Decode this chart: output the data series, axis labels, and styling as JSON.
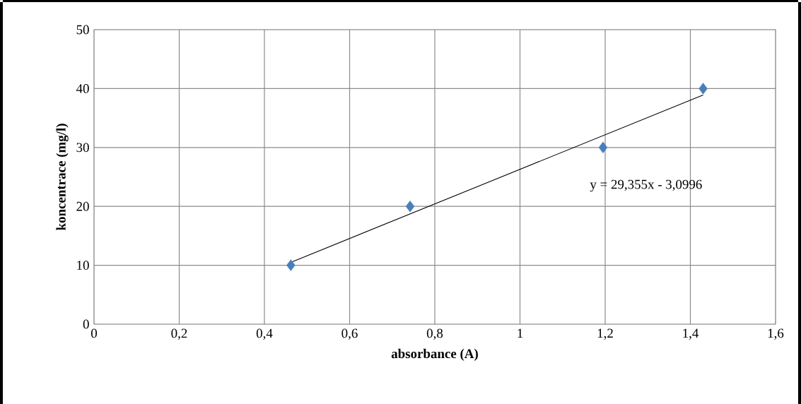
{
  "chart_data": {
    "type": "scatter",
    "xlabel": "absorbance (A)",
    "ylabel": "koncentrace (mg/l)",
    "annotations": [
      "y = 29,355x - 3,0996"
    ],
    "series": [
      {
        "color": "#4a7ebb",
        "marker": "diamond",
        "x": [
          0.462,
          0.742,
          1.195,
          1.43
        ],
        "values": [
          10,
          20,
          30,
          40
        ]
      },
      {
        "type": "line",
        "color": "#000000",
        "marker": "none",
        "x": [
          0.462,
          1.43
        ],
        "values": [
          10.5,
          38.9
        ]
      }
    ],
    "xlim": [
      0,
      1.6
    ],
    "ylim": [
      0,
      50
    ],
    "xticks": [
      {
        "value": 0,
        "label": "0"
      },
      {
        "value": 0.2,
        "label": "0,2"
      },
      {
        "value": 0.4,
        "label": "0,4"
      },
      {
        "value": 0.6,
        "label": "0,6"
      },
      {
        "value": 0.8,
        "label": "0,8"
      },
      {
        "value": 1,
        "label": "1"
      },
      {
        "value": 1.2,
        "label": "1,2"
      },
      {
        "value": 1.4,
        "label": "1,4"
      },
      {
        "value": 1.6,
        "label": "1,6"
      }
    ],
    "yticks": [
      0,
      10,
      20,
      30,
      40,
      50
    ],
    "grid": true
  }
}
